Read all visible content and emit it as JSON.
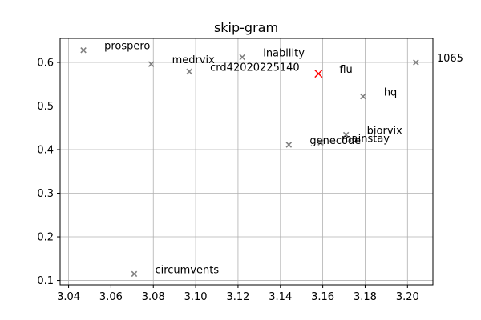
{
  "chart_data": {
    "type": "scatter",
    "title": "skip-gram",
    "xlabel": "",
    "ylabel": "",
    "xlim": [
      3.036,
      3.212
    ],
    "ylim": [
      0.09,
      0.655
    ],
    "xticks": [
      3.04,
      3.06,
      3.08,
      3.1,
      3.12,
      3.14,
      3.16,
      3.18,
      3.2
    ],
    "xtick_labels": [
      "3.04",
      "3.06",
      "3.08",
      "3.10",
      "3.12",
      "3.14",
      "3.16",
      "3.18",
      "3.20"
    ],
    "yticks": [
      0.1,
      0.2,
      0.3,
      0.4,
      0.5,
      0.6
    ],
    "ytick_labels": [
      "0.1",
      "0.2",
      "0.3",
      "0.4",
      "0.5",
      "0.6"
    ],
    "grid": true,
    "marker": "x",
    "points": [
      {
        "label": "prospero",
        "x": 3.047,
        "y": 0.628,
        "color": "#808080"
      },
      {
        "label": "medrvix",
        "x": 3.079,
        "y": 0.596,
        "color": "#808080"
      },
      {
        "label": "crd42020225140",
        "x": 3.097,
        "y": 0.579,
        "color": "#808080"
      },
      {
        "label": "inability",
        "x": 3.122,
        "y": 0.612,
        "color": "#808080"
      },
      {
        "label": "flu",
        "x": 3.158,
        "y": 0.574,
        "color": "#ff0000",
        "highlight": true
      },
      {
        "label": "1065",
        "x": 3.204,
        "y": 0.6,
        "color": "#808080"
      },
      {
        "label": "hq",
        "x": 3.179,
        "y": 0.522,
        "color": "#808080"
      },
      {
        "label": "biorvix",
        "x": 3.171,
        "y": 0.434,
        "color": "#808080"
      },
      {
        "label": "mainstay",
        "x": 3.159,
        "y": 0.416,
        "color": "#808080"
      },
      {
        "label": "genecode",
        "x": 3.144,
        "y": 0.411,
        "color": "#808080"
      },
      {
        "label": "circumvents",
        "x": 3.071,
        "y": 0.115,
        "color": "#808080"
      }
    ]
  }
}
